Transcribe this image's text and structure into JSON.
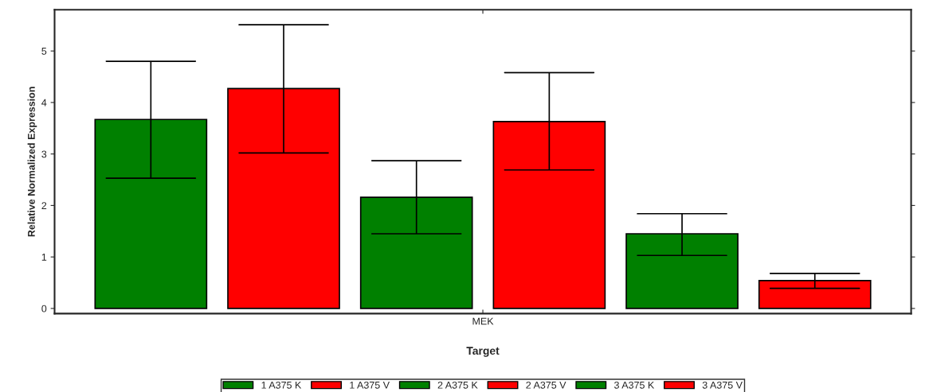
{
  "chart_data": {
    "type": "bar",
    "xlabel": "Target",
    "ylabel": "Relative Normalized Expression",
    "categories": [
      "MEK"
    ],
    "series": [
      {
        "name": "1 A375 K",
        "color": "#008000",
        "values": [
          3.67
        ],
        "errors": [
          [
            2.53,
            4.8
          ]
        ]
      },
      {
        "name": "1 A375 V",
        "color": "#ff0000",
        "values": [
          4.27
        ],
        "errors": [
          [
            3.02,
            5.51
          ]
        ]
      },
      {
        "name": "2 A375 K",
        "color": "#008000",
        "values": [
          2.16
        ],
        "errors": [
          [
            1.45,
            2.87
          ]
        ]
      },
      {
        "name": "2 A375 V",
        "color": "#ff0000",
        "values": [
          3.63
        ],
        "errors": [
          [
            2.69,
            4.58
          ]
        ]
      },
      {
        "name": "3 A375 K",
        "color": "#008000",
        "values": [
          1.45
        ],
        "errors": [
          [
            1.03,
            1.84
          ]
        ]
      },
      {
        "name": "3 A375 V",
        "color": "#ff0000",
        "values": [
          0.54
        ],
        "errors": [
          [
            0.39,
            0.68
          ]
        ]
      }
    ],
    "ylim": [
      -0.1,
      5.8
    ],
    "yticks": [
      0,
      1,
      2,
      3,
      4,
      5
    ],
    "grid": false,
    "legend": "bottom"
  }
}
